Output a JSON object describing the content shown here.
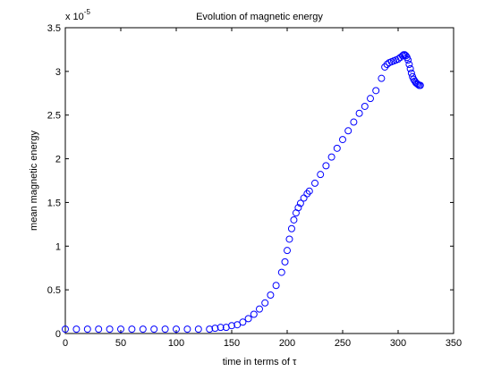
{
  "chart_data": {
    "type": "scatter",
    "title": "Evolution of magnetic energy",
    "xlabel": "time in terms of τ",
    "ylabel": "mean magnetic energy",
    "y_scale_label_base": "x 10",
    "y_scale_label_exp": "-5",
    "xlim": [
      0,
      350
    ],
    "ylim": [
      0,
      3.5
    ],
    "xticks": [
      "0",
      "50",
      "100",
      "150",
      "200",
      "250",
      "300",
      "350"
    ],
    "yticks": [
      "0",
      "0.5",
      "1",
      "1.5",
      "2",
      "2.5",
      "3",
      "3.5"
    ],
    "xtick_values": [
      0,
      50,
      100,
      150,
      200,
      250,
      300,
      350
    ],
    "ytick_values": [
      0,
      0.5,
      1,
      1.5,
      2,
      2.5,
      3,
      3.5
    ],
    "grid": false,
    "marker": "circle",
    "marker_color": "#0000ff",
    "series": [
      {
        "points": [
          [
            0,
            0.05
          ],
          [
            10,
            0.05
          ],
          [
            20,
            0.05
          ],
          [
            30,
            0.05
          ],
          [
            40,
            0.05
          ],
          [
            50,
            0.05
          ],
          [
            60,
            0.05
          ],
          [
            70,
            0.05
          ],
          [
            80,
            0.05
          ],
          [
            90,
            0.05
          ],
          [
            100,
            0.05
          ],
          [
            110,
            0.05
          ],
          [
            120,
            0.05
          ],
          [
            130,
            0.05
          ],
          [
            135,
            0.06
          ],
          [
            140,
            0.07
          ],
          [
            145,
            0.07
          ],
          [
            150,
            0.09
          ],
          [
            155,
            0.1
          ],
          [
            160,
            0.13
          ],
          [
            165,
            0.17
          ],
          [
            170,
            0.22
          ],
          [
            175,
            0.28
          ],
          [
            180,
            0.35
          ],
          [
            185,
            0.44
          ],
          [
            190,
            0.55
          ],
          [
            195,
            0.7
          ],
          [
            198,
            0.82
          ],
          [
            200,
            0.95
          ],
          [
            202,
            1.08
          ],
          [
            204,
            1.2
          ],
          [
            206,
            1.3
          ],
          [
            208,
            1.38
          ],
          [
            210,
            1.44
          ],
          [
            212,
            1.49
          ],
          [
            215,
            1.55
          ],
          [
            218,
            1.6
          ],
          [
            220,
            1.63
          ],
          [
            225,
            1.72
          ],
          [
            230,
            1.82
          ],
          [
            235,
            1.92
          ],
          [
            240,
            2.02
          ],
          [
            245,
            2.12
          ],
          [
            250,
            2.22
          ],
          [
            255,
            2.32
          ],
          [
            260,
            2.42
          ],
          [
            265,
            2.52
          ],
          [
            270,
            2.6
          ],
          [
            275,
            2.69
          ],
          [
            280,
            2.78
          ],
          [
            285,
            2.92
          ],
          [
            288,
            3.05
          ],
          [
            290,
            3.08
          ],
          [
            292,
            3.1
          ],
          [
            294,
            3.11
          ],
          [
            296,
            3.12
          ],
          [
            298,
            3.13
          ],
          [
            300,
            3.14
          ],
          [
            302,
            3.16
          ],
          [
            304,
            3.18
          ],
          [
            305,
            3.19
          ],
          [
            306,
            3.19
          ],
          [
            307,
            3.18
          ],
          [
            308,
            3.16
          ],
          [
            309,
            3.13
          ],
          [
            310,
            3.08
          ],
          [
            311,
            3.03
          ],
          [
            312,
            2.98
          ],
          [
            313,
            2.94
          ],
          [
            314,
            2.91
          ],
          [
            315,
            2.89
          ],
          [
            316,
            2.87
          ],
          [
            317,
            2.86
          ],
          [
            318,
            2.85
          ],
          [
            319,
            2.84
          ],
          [
            320,
            2.84
          ]
        ]
      }
    ]
  }
}
